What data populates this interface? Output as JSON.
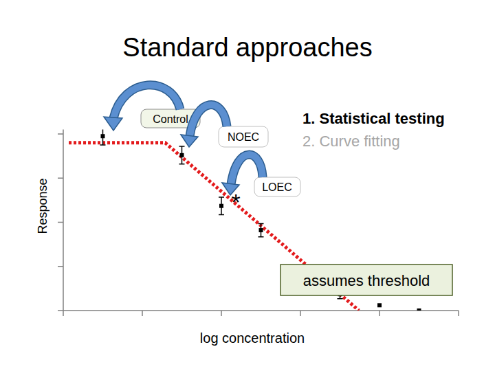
{
  "chart_data": {
    "type": "scatter",
    "title": "Standard approaches",
    "x_label": "log concentration",
    "y_label": "Response",
    "annotations": [
      "Control",
      "NOEC",
      "LOEC",
      "*",
      "1. Statistical testing",
      "2. Curve fitting",
      "assumes threshold"
    ],
    "xlim": [
      0,
      5
    ],
    "xticks": [
      0,
      1,
      2,
      3,
      4,
      5
    ],
    "ylim": [
      0,
      4.1
    ],
    "yticks": [
      0,
      1,
      2,
      3,
      4
    ],
    "grid": false,
    "tick_labels": false,
    "series": [
      {
        "type": "scatter",
        "color": "#000000",
        "marker": "square",
        "x": [
          0.5,
          1.5,
          2.0,
          2.5,
          3.5,
          4.0,
          4.5
        ],
        "values": [
          3.95,
          3.52,
          2.37,
          1.82,
          0.37,
          0.12,
          0.0
        ],
        "errors": [
          0.2,
          0.2,
          0.2,
          0.15,
          0.1,
          0,
          0
        ]
      },
      {
        "type": "line",
        "color": "#e31a1c",
        "line_style": "dotted",
        "x": [
          0.07,
          1.29,
          3.74
        ],
        "values": [
          3.8,
          3.8,
          0
        ]
      }
    ]
  }
}
